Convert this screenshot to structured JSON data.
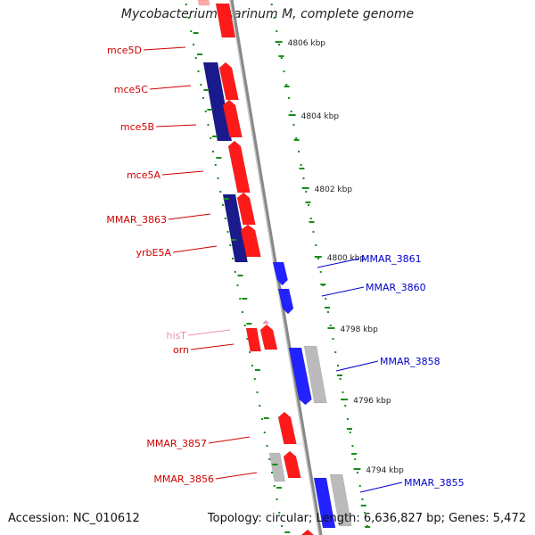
{
  "title": "Mycobacterium marinum M, complete genome",
  "footer": {
    "accession": "Accession: NC_010612",
    "summary": "Topology: circular; Length: 6,636,827 bp; Genes: 5,472"
  },
  "colors": {
    "forward_gene": "#ff1a1a",
    "reverse_gene": "#1a1a8c",
    "other_forward": "#2222ff",
    "pseudo": "#bbbbbb",
    "trna": "#f08cb4",
    "ruler": "#1a8c1a",
    "backbone": "#888888"
  },
  "ruler": {
    "ticks": [
      {
        "label": "4806 kbp"
      },
      {
        "label": "4804 kbp"
      },
      {
        "label": "4802 kbp"
      },
      {
        "label": "4800 kbp"
      },
      {
        "label": "4798 kbp"
      },
      {
        "label": "4796 kbp"
      },
      {
        "label": "4794 kbp"
      }
    ]
  },
  "gene_labels_left": [
    {
      "text": "mce5D",
      "color": "#d00000"
    },
    {
      "text": "mce5C",
      "color": "#d00000"
    },
    {
      "text": "mce5B",
      "color": "#d00000"
    },
    {
      "text": "mce5A",
      "color": "#d00000"
    },
    {
      "text": "MMAR_3863",
      "color": "#d00000"
    },
    {
      "text": "yrbE5A",
      "color": "#d00000"
    },
    {
      "text": "hisT",
      "color": "#f08cb4"
    },
    {
      "text": "orn",
      "color": "#d00000"
    },
    {
      "text": "MMAR_3857",
      "color": "#d00000"
    },
    {
      "text": "MMAR_3856",
      "color": "#d00000"
    }
  ],
  "gene_labels_right": [
    {
      "text": "MMAR_3861",
      "color": "#0000cc"
    },
    {
      "text": "MMAR_3860",
      "color": "#0000cc"
    },
    {
      "text": "MMAR_3858",
      "color": "#0000cc"
    },
    {
      "text": "MMAR_3855",
      "color": "#0000cc"
    }
  ]
}
